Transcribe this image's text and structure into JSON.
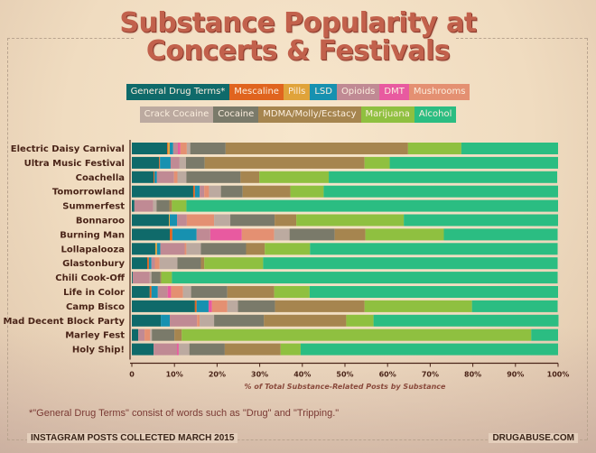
{
  "title_line1": "Substance Popularity at",
  "title_line2": "Concerts & Festivals",
  "legend": [
    {
      "label": "General Drug Terms*",
      "color": "#0f6a6a"
    },
    {
      "label": "Mescaline",
      "color": "#e0641f"
    },
    {
      "label": "Pills",
      "color": "#e0a33a"
    },
    {
      "label": "LSD",
      "color": "#1791b0"
    },
    {
      "label": "Opioids",
      "color": "#c08a94"
    },
    {
      "label": "DMT",
      "color": "#e85aa0"
    },
    {
      "label": "Mushrooms",
      "color": "#e49072"
    },
    {
      "label": "Crack Cocaine",
      "color": "#bcaaa0"
    },
    {
      "label": "Cocaine",
      "color": "#7a7a6a"
    },
    {
      "label": "MDMA/Molly/Ecstacy",
      "color": "#a6854f"
    },
    {
      "label": "Marijuana",
      "color": "#8fc040"
    },
    {
      "label": "Alcohol",
      "color": "#2bbd82"
    }
  ],
  "chart_data": {
    "type": "bar",
    "orientation": "horizontal",
    "stacked": true,
    "title": "Substance Popularity at Concerts & Festivals",
    "xlabel": "% of Total Substance-Related Posts by Substance",
    "ylabel": "",
    "xlim": [
      0,
      100
    ],
    "x_ticks": [
      "0",
      "10%",
      "20%",
      "30%",
      "40%",
      "50%",
      "60%",
      "70%",
      "80%",
      "90%",
      "100%"
    ],
    "legend_position": "top",
    "categories": [
      "Electric Daisy Carnival",
      "Ultra Music Festival",
      "Coachella",
      "Tomorrowland",
      "Summerfest",
      "Bonnaroo",
      "Burning Man",
      "Lollapalooza",
      "Glastonbury",
      "Chili Cook-Off",
      "Life in Color",
      "Camp Bisco",
      "Mad Decent Block Party",
      "Marley Fest",
      "Holy Ship!"
    ],
    "series": [
      {
        "name": "General Drug Terms*",
        "values": [
          8.3,
          6.4,
          5.1,
          14.4,
          0.6,
          8.7,
          8.9,
          5.5,
          3.6,
          0.2,
          4.2,
          14.8,
          6.8,
          1.5,
          5.1
        ]
      },
      {
        "name": "Mescaline",
        "values": [
          0.2,
          0.2,
          0.2,
          0.4,
          0,
          0,
          0.6,
          0,
          0.4,
          0,
          0.4,
          0.4,
          0,
          0,
          0
        ]
      },
      {
        "name": "Pills",
        "values": [
          0.4,
          0,
          0,
          0,
          0,
          0.2,
          0,
          0.4,
          0,
          0,
          0,
          0,
          0,
          0,
          0
        ]
      },
      {
        "name": "LSD",
        "values": [
          0.8,
          2.5,
          0.6,
          1.1,
          0,
          1.7,
          5.7,
          0.8,
          0.6,
          0,
          1.5,
          2.8,
          2.1,
          0,
          0
        ]
      },
      {
        "name": "Opioids",
        "values": [
          1.1,
          2.1,
          4.0,
          1.1,
          4.4,
          2.3,
          3.2,
          5.7,
          0.8,
          4.0,
          2.3,
          0,
          6.4,
          1.5,
          5.5
        ]
      },
      {
        "name": "DMT",
        "values": [
          0.6,
          0,
          0,
          0,
          0,
          0,
          7.4,
          0,
          0,
          0,
          0.8,
          0.8,
          0,
          0,
          0.4
        ]
      },
      {
        "name": "Mushrooms",
        "values": [
          1.5,
          0,
          0.8,
          1.1,
          0,
          6.4,
          7.6,
          0.4,
          1.1,
          0,
          2.8,
          3.6,
          0.6,
          1.3,
          0
        ]
      },
      {
        "name": "Crack Cocaine",
        "values": [
          0.8,
          1.5,
          2.1,
          2.8,
          0.8,
          3.8,
          3.6,
          3.4,
          4.2,
          0.4,
          1.9,
          2.5,
          3.4,
          0.4,
          2.5
        ]
      },
      {
        "name": "Cocaine",
        "values": [
          8.3,
          4.4,
          12.7,
          5.1,
          3.0,
          10.4,
          10.6,
          10.6,
          5.5,
          2.1,
          8.5,
          8.7,
          11.7,
          5.3,
          8.3
        ]
      },
      {
        "name": "MDMA/Molly/Ecstacy",
        "values": [
          42.8,
          37.5,
          4.4,
          11.2,
          0.6,
          5.1,
          7.2,
          4.4,
          0.8,
          0.2,
          11.0,
          21.0,
          19.3,
          1.7,
          13.1
        ]
      },
      {
        "name": "Marijuana",
        "values": [
          12.5,
          5.9,
          16.3,
          7.8,
          3.4,
          25.2,
          18.4,
          10.6,
          13.8,
          2.5,
          8.3,
          25.2,
          6.4,
          82.0,
          4.7
        ]
      },
      {
        "name": "Alcohol",
        "values": [
          22.7,
          39.5,
          53.6,
          55.0,
          87.2,
          36.2,
          26.7,
          58.1,
          69.1,
          90.5,
          58.3,
          20.1,
          43.4,
          6.3,
          60.4
        ]
      }
    ]
  },
  "footnote": "*\"General Drug Terms\" consist of words such as \"Drug\" and \"Tripping.\"",
  "footer_left": "INSTAGRAM POSTS COLLECTED MARCH 2015",
  "footer_right": "DRUGABUSE.COM"
}
